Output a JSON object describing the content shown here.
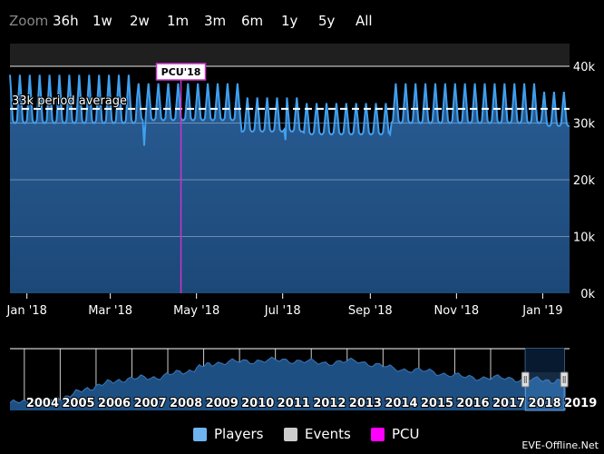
{
  "zoom": {
    "label": "Zoom",
    "buttons": [
      "36h",
      "1w",
      "2w",
      "1m",
      "3m",
      "6m",
      "1y",
      "5y",
      "All"
    ]
  },
  "legend": {
    "items": [
      {
        "label": "Players",
        "color": "#6fb3f0"
      },
      {
        "label": "Events",
        "color": "#cccccc"
      },
      {
        "label": "PCU",
        "color": "#ff00ff"
      }
    ]
  },
  "credit": "EVE-Offline.Net",
  "colors": {
    "background": "#000000",
    "line": "#3fa0f0",
    "area_top": "#2a5d94",
    "area_bottom": "#1c4878",
    "pcu": "#cc33cc",
    "navigator_fill": "#1e4f82"
  },
  "chart_data": {
    "type": "line",
    "series": [
      {
        "name": "Players"
      }
    ],
    "ylim": [
      0,
      44000
    ],
    "yticks": [
      0,
      10000,
      20000,
      30000,
      40000
    ],
    "ytick_labels": [
      "0k",
      "10k",
      "20k",
      "30k",
      "40k"
    ],
    "xlim": [
      "2017-12-20",
      "2019-01-20"
    ],
    "xticks": [
      "2018-01-01",
      "2018-03-01",
      "2018-05-01",
      "2018-07-01",
      "2018-09-01",
      "2018-11-01",
      "2019-01-01"
    ],
    "xtick_labels": [
      "Jan '18",
      "Mar '18",
      "May '18",
      "Jul '18",
      "Sep '18",
      "Nov '18",
      "Jan '19"
    ],
    "average": {
      "value": 32500,
      "label": "33k period average"
    },
    "pcu": {
      "date": "2018-04-20",
      "value": 40000,
      "label": "PCU'18"
    },
    "band_above": 40000,
    "daily_players": {
      "start": "2017-12-20",
      "period_days": 7,
      "segments": [
        {
          "until": "2018-03-20",
          "low": 30000,
          "high": 38500
        },
        {
          "until": "2018-06-01",
          "low": 30500,
          "high": 37000
        },
        {
          "until": "2018-07-15",
          "low": 28500,
          "high": 34500
        },
        {
          "until": "2018-09-15",
          "low": 28000,
          "high": 33500
        },
        {
          "until": "2018-12-31",
          "low": 30000,
          "high": 37000
        },
        {
          "until": "2019-01-20",
          "low": 29500,
          "high": 35500
        }
      ],
      "dips": [
        {
          "date": "2018-03-25",
          "value": 26000
        },
        {
          "date": "2018-07-03",
          "value": 27000
        }
      ]
    },
    "navigator": {
      "years": [
        "2004",
        "2005",
        "2006",
        "2007",
        "2008",
        "2009",
        "2010",
        "2011",
        "2012",
        "2013",
        "2014",
        "2015",
        "2016",
        "2017",
        "2018",
        "2019"
      ],
      "ylim": [
        0,
        65000
      ],
      "yearly_avg": [
        {
          "year": 2003.6,
          "value": 8000
        },
        {
          "year": 2004.5,
          "value": 9000
        },
        {
          "year": 2005.2,
          "value": 15000
        },
        {
          "year": 2006.0,
          "value": 26000
        },
        {
          "year": 2006.8,
          "value": 33000
        },
        {
          "year": 2007.7,
          "value": 35000
        },
        {
          "year": 2008.6,
          "value": 42000
        },
        {
          "year": 2009.3,
          "value": 50000
        },
        {
          "year": 2010.3,
          "value": 52000
        },
        {
          "year": 2011.3,
          "value": 53000
        },
        {
          "year": 2012.3,
          "value": 50000
        },
        {
          "year": 2013.3,
          "value": 52000
        },
        {
          "year": 2014.3,
          "value": 44000
        },
        {
          "year": 2015.3,
          "value": 41000
        },
        {
          "year": 2016.3,
          "value": 35000
        },
        {
          "year": 2017.3,
          "value": 34000
        },
        {
          "year": 2018.3,
          "value": 32000
        },
        {
          "year": 2019.1,
          "value": 31000
        }
      ],
      "range": [
        "2017-12-20",
        "2019-01-20"
      ]
    }
  }
}
